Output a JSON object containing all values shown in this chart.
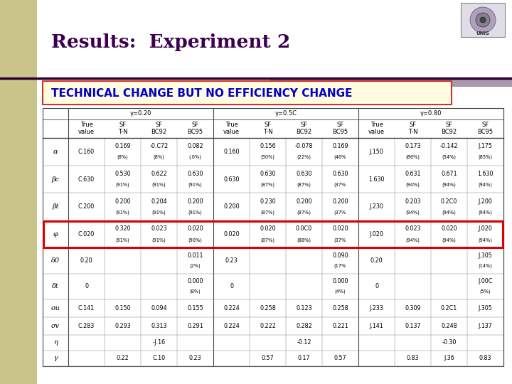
{
  "title": "Results:  Experiment 2",
  "subtitle": "TECHNICAL CHANGE BUT NO EFFICIENCY CHANGE",
  "bg_left_color": "#c8c48a",
  "slide_bg": "#ffffff",
  "subtitle_box_bg": "#fffce0",
  "subtitle_border": "#cc3333",
  "subtitle_color": "#0000cc",
  "title_color": "#3d0050",
  "col_groups": [
    "γ=0.20",
    "γ=0.5C",
    "γ=0.80"
  ],
  "sub_cols_line1": [
    "True",
    "SF",
    "SF",
    "SF"
  ],
  "sub_cols_line2": [
    "value",
    "T-N",
    "BC92",
    "BC95"
  ],
  "row_labels": [
    "α",
    "βc",
    "βt",
    "φ",
    "δ0",
    "δt",
    "σu",
    "σv",
    "η",
    "γ"
  ],
  "highlighted_row": 3,
  "highlight_color": "#dd0000",
  "table_data": [
    [
      "C.160",
      "0.169\n(8%)",
      "-0.C72\n(8%)",
      "0.082\n(.0%)",
      "0.160",
      "0.156\n(50%)",
      "-0.078\n(22%)",
      "0.169\n(46%",
      "J.150",
      "0.173\n(86%)",
      "-0.142\n(54%)",
      "J.175\n(85%)"
    ],
    [
      "C.630",
      "0.530\n(91%)",
      "0.622\n(91%)",
      "0.630\n(91%)",
      "0.630",
      "0.630\n(87%)",
      "0.630\n(87%)",
      "0.630\n(37%",
      "1.630",
      "0.631\n(94%)",
      "0.671\n(94%)",
      "1.630\n(94%)"
    ],
    [
      "C.200",
      "0.200\n(91%)",
      "0.204\n(91%)",
      "0.200\n(91%)",
      "0.200",
      "0.230\n(87%)",
      "0.200\n(87%)",
      "0.200\n(37%",
      "J.230",
      "0.203\n(94%)",
      "0.2C0\n(94%)",
      "J.200\n(94%)"
    ],
    [
      "C.020",
      "0.320\n(91%)",
      "0.023\n(91%)",
      "0.020\n(90%)",
      "0.020",
      "0.020\n(87%)",
      "0.0C0\n(88%)",
      "0.020\n(37%",
      "J.020",
      "0.023\n(94%)",
      "0.020\n(94%)",
      "J.020\n(94%)"
    ],
    [
      "0.20",
      "",
      "",
      "0.011\n(2%)",
      "0.23",
      "",
      "",
      "0.090\n(17%",
      "0.20",
      "",
      "",
      "J.305\n(14%)"
    ],
    [
      "0",
      "",
      "",
      "0.000\n(8%)",
      "0",
      "",
      "",
      "0.000\n(4%)",
      "0",
      "",
      "",
      "J.00C\n(5%)"
    ],
    [
      "C.141",
      "0.150",
      "0.094",
      "0.155",
      "0.224",
      "0.258",
      "0.123",
      "0.258",
      "J.233",
      "0.309",
      "0.2C1",
      "J.305"
    ],
    [
      "C.283",
      "0.293",
      "0.313",
      "0.291",
      "0.224",
      "0.222",
      "0.282",
      "0.221",
      "J.141",
      "0.137",
      "0.248",
      "J.137"
    ],
    [
      "",
      "",
      "-J.16",
      "",
      "",
      "",
      "-0.12",
      "",
      "",
      "",
      "-0.30",
      ""
    ],
    [
      "",
      "0.22",
      "C.10",
      "0.23",
      "",
      "0.57",
      "0.17",
      "0.57",
      "",
      "0.83",
      "J.36",
      "0.83"
    ]
  ]
}
